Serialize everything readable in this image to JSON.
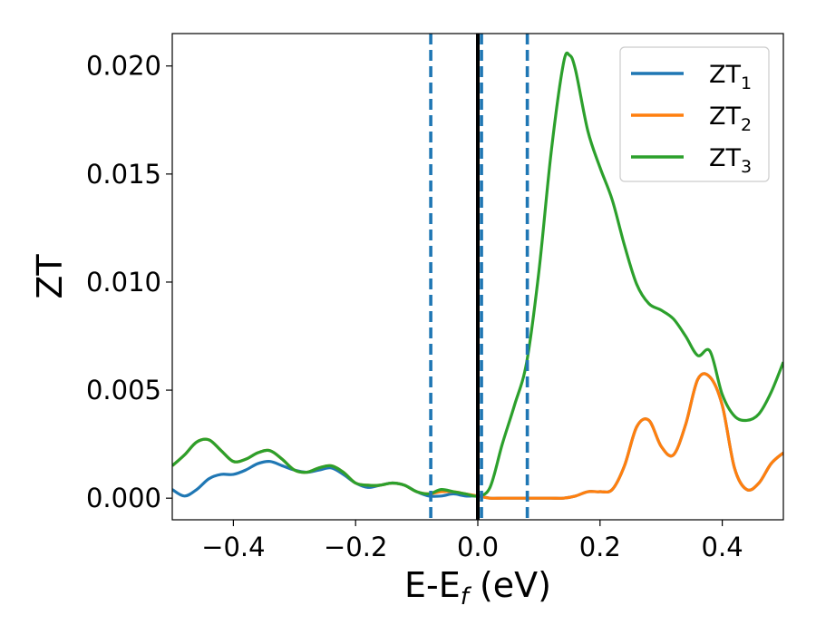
{
  "chart_data": {
    "type": "line",
    "title": "",
    "xlabel": "E-E",
    "xlabel_sub": "f",
    "xlabel_unit": " (eV)",
    "ylabel": "ZT",
    "xlim": [
      -0.5,
      0.5
    ],
    "ylim": [
      -0.001,
      0.0215
    ],
    "xticks": [
      -0.4,
      -0.2,
      0.0,
      0.2,
      0.4
    ],
    "xtick_labels": [
      "−0.4",
      "−0.2",
      "0.0",
      "0.2",
      "0.4"
    ],
    "yticks": [
      0.0,
      0.005,
      0.01,
      0.015,
      0.02
    ],
    "ytick_labels": [
      "0.000",
      "0.005",
      "0.010",
      "0.015",
      "0.020"
    ],
    "grid": false,
    "legend_position": "top-right",
    "vlines": [
      {
        "x": -0.077,
        "style": "dashed",
        "color": "#1f77b4"
      },
      {
        "x": 0.0,
        "style": "solid",
        "color": "#000000"
      },
      {
        "x": 0.006,
        "style": "dashed",
        "color": "#1f77b4"
      },
      {
        "x": 0.081,
        "style": "dashed",
        "color": "#1f77b4"
      }
    ],
    "series": [
      {
        "name": "ZT",
        "sub": "1",
        "color": "#1f77b4",
        "x": [
          -0.5,
          -0.48,
          -0.46,
          -0.44,
          -0.42,
          -0.4,
          -0.38,
          -0.36,
          -0.34,
          -0.32,
          -0.3,
          -0.28,
          -0.26,
          -0.24,
          -0.22,
          -0.2,
          -0.18,
          -0.16,
          -0.14,
          -0.12,
          -0.1,
          -0.08,
          -0.06,
          -0.04,
          -0.02,
          0.0,
          0.02,
          0.04,
          0.06,
          0.08,
          0.1,
          0.12,
          0.14,
          0.16,
          0.18,
          0.2,
          0.22,
          0.24,
          0.26,
          0.28,
          0.3,
          0.32,
          0.34,
          0.36,
          0.38,
          0.4,
          0.42,
          0.44,
          0.46,
          0.48,
          0.5
        ],
        "y": [
          0.0004,
          0.0001,
          0.0004,
          0.0009,
          0.0011,
          0.0011,
          0.0013,
          0.0016,
          0.0017,
          0.0015,
          0.0013,
          0.0012,
          0.0013,
          0.0014,
          0.0011,
          0.0007,
          0.0005,
          0.0006,
          0.0007,
          0.0006,
          0.0003,
          0.0001,
          0.0001,
          0.0002,
          0.0001,
          0.0001,
          0.0,
          0.0,
          0.0,
          0.0,
          0.0,
          0.0,
          0.0,
          0.0001,
          0.0003,
          0.0003,
          0.0004,
          0.0015,
          0.0033,
          0.0036,
          0.0024,
          0.002,
          0.0034,
          0.0055,
          0.0056,
          0.0043,
          0.0014,
          0.0004,
          0.0007,
          0.0016,
          0.0021
        ]
      },
      {
        "name": "ZT",
        "sub": "2",
        "color": "#ff7f0e",
        "x": [
          -0.5,
          -0.48,
          -0.46,
          -0.44,
          -0.42,
          -0.4,
          -0.38,
          -0.36,
          -0.34,
          -0.32,
          -0.3,
          -0.28,
          -0.26,
          -0.24,
          -0.22,
          -0.2,
          -0.18,
          -0.16,
          -0.14,
          -0.12,
          -0.1,
          -0.08,
          -0.06,
          -0.04,
          -0.02,
          0.0,
          0.02,
          0.04,
          0.06,
          0.08,
          0.1,
          0.12,
          0.14,
          0.16,
          0.18,
          0.2,
          0.22,
          0.24,
          0.26,
          0.28,
          0.3,
          0.32,
          0.34,
          0.36,
          0.38,
          0.4,
          0.42,
          0.44,
          0.46,
          0.48,
          0.5
        ],
        "y": [
          0.0015,
          0.002,
          0.0026,
          0.0027,
          0.0022,
          0.0017,
          0.0018,
          0.0021,
          0.0022,
          0.0018,
          0.0013,
          0.0012,
          0.0014,
          0.0015,
          0.0012,
          0.0007,
          0.0006,
          0.0006,
          0.0007,
          0.0006,
          0.0003,
          0.0002,
          0.0003,
          0.0003,
          0.0002,
          0.0001,
          0.0,
          0.0,
          0.0,
          0.0,
          0.0,
          0.0,
          0.0,
          0.0001,
          0.0003,
          0.0003,
          0.0004,
          0.0015,
          0.0033,
          0.0036,
          0.0024,
          0.002,
          0.0034,
          0.0055,
          0.0056,
          0.0043,
          0.0014,
          0.0004,
          0.0007,
          0.0016,
          0.0021
        ]
      },
      {
        "name": "ZT",
        "sub": "3",
        "color": "#2ca02c",
        "x": [
          -0.5,
          -0.48,
          -0.46,
          -0.44,
          -0.42,
          -0.4,
          -0.38,
          -0.36,
          -0.34,
          -0.32,
          -0.3,
          -0.28,
          -0.26,
          -0.24,
          -0.22,
          -0.2,
          -0.18,
          -0.16,
          -0.14,
          -0.12,
          -0.1,
          -0.08,
          -0.06,
          -0.04,
          -0.02,
          0.0,
          0.02,
          0.04,
          0.06,
          0.08,
          0.1,
          0.12,
          0.14,
          0.15,
          0.16,
          0.18,
          0.2,
          0.22,
          0.24,
          0.26,
          0.28,
          0.3,
          0.32,
          0.34,
          0.36,
          0.38,
          0.4,
          0.42,
          0.44,
          0.46,
          0.48,
          0.5
        ],
        "y": [
          0.0015,
          0.002,
          0.0026,
          0.0027,
          0.0022,
          0.0017,
          0.0018,
          0.0021,
          0.0022,
          0.0018,
          0.0013,
          0.0012,
          0.0014,
          0.0015,
          0.0012,
          0.0007,
          0.0006,
          0.0006,
          0.0007,
          0.0006,
          0.0003,
          0.0002,
          0.0004,
          0.0003,
          0.0002,
          0.0001,
          0.0005,
          0.0025,
          0.0043,
          0.0063,
          0.0105,
          0.016,
          0.0201,
          0.0205,
          0.0198,
          0.017,
          0.0153,
          0.0138,
          0.0117,
          0.0099,
          0.009,
          0.0087,
          0.0083,
          0.0075,
          0.0066,
          0.0068,
          0.0048,
          0.0038,
          0.0036,
          0.0039,
          0.0049,
          0.0063
        ]
      }
    ]
  }
}
